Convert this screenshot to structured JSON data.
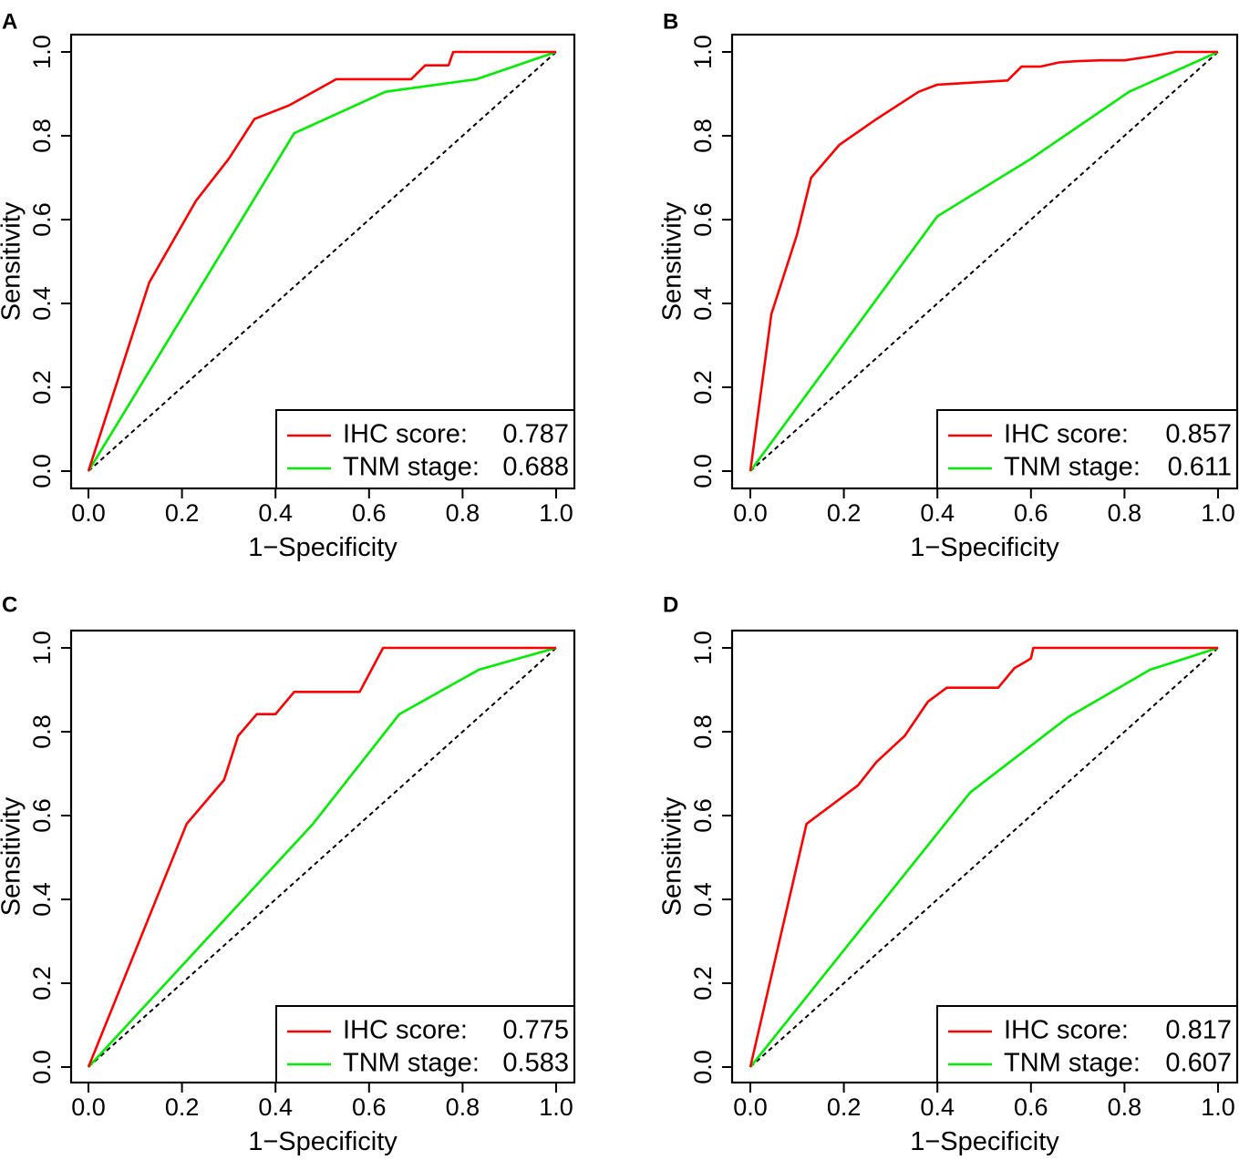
{
  "figure": {
    "description_domain": "ROC curves"
  },
  "colors": {
    "ihc": "#ff0000",
    "tnm": "#00ee00",
    "diagonal": "#000000",
    "axis": "#000000"
  },
  "chart_data": [
    {
      "type": "line",
      "panel_label": "A",
      "xlabel": "1−Specificity",
      "ylabel": "Sensitivity",
      "xlim": [
        0,
        1
      ],
      "ylim": [
        0,
        1
      ],
      "xticks": [
        "0.0",
        "0.2",
        "0.4",
        "0.6",
        "0.8",
        "1.0"
      ],
      "yticks": [
        "0.0",
        "0.2",
        "0.4",
        "0.6",
        "0.8",
        "1.0"
      ],
      "grid": false,
      "legend_position": "bottom-right",
      "reference_line": {
        "x": [
          0,
          1
        ],
        "y": [
          0,
          1
        ],
        "style": "dashed"
      },
      "series": [
        {
          "name": "IHC score:",
          "auc": "0.787",
          "color": "#ff0000",
          "x": [
            0,
            0.13,
            0.23,
            0.3,
            0.355,
            0.43,
            0.53,
            0.69,
            0.72,
            0.75,
            0.77,
            0.78,
            1.0
          ],
          "y": [
            0,
            0.45,
            0.645,
            0.745,
            0.84,
            0.873,
            0.935,
            0.935,
            0.968,
            0.968,
            0.968,
            1.0,
            1.0
          ]
        },
        {
          "name": "TNM stage:",
          "auc": "0.688",
          "color": "#00ee00",
          "x": [
            0,
            0.44,
            0.635,
            0.83,
            1.0
          ],
          "y": [
            0,
            0.806,
            0.905,
            0.935,
            1.0
          ]
        }
      ]
    },
    {
      "type": "line",
      "panel_label": "B",
      "xlabel": "1−Specificity",
      "ylabel": "Sensitivity",
      "xlim": [
        0,
        1
      ],
      "ylim": [
        0,
        1
      ],
      "xticks": [
        "0.0",
        "0.2",
        "0.4",
        "0.6",
        "0.8",
        "1.0"
      ],
      "yticks": [
        "0.0",
        "0.2",
        "0.4",
        "0.6",
        "0.8",
        "1.0"
      ],
      "grid": false,
      "legend_position": "bottom-right",
      "reference_line": {
        "x": [
          0,
          1
        ],
        "y": [
          0,
          1
        ],
        "style": "dashed"
      },
      "series": [
        {
          "name": "IHC score:",
          "auc": "0.857",
          "color": "#ff0000",
          "x": [
            0,
            0.045,
            0.1,
            0.13,
            0.19,
            0.27,
            0.36,
            0.4,
            0.55,
            0.58,
            0.62,
            0.66,
            0.7,
            0.75,
            0.8,
            0.86,
            0.91,
            1.0
          ],
          "y": [
            0,
            0.375,
            0.565,
            0.7,
            0.778,
            0.84,
            0.905,
            0.922,
            0.932,
            0.965,
            0.965,
            0.975,
            0.978,
            0.98,
            0.98,
            0.99,
            1.0,
            1.0
          ]
        },
        {
          "name": "TNM stage:",
          "auc": "0.611",
          "color": "#00ee00",
          "x": [
            0,
            0.4,
            0.6,
            0.81,
            1.0
          ],
          "y": [
            0,
            0.608,
            0.745,
            0.905,
            1.0
          ]
        }
      ]
    },
    {
      "type": "line",
      "panel_label": "C",
      "xlabel": "1−Specificity",
      "ylabel": "Sensitivity",
      "xlim": [
        0,
        1
      ],
      "ylim": [
        0,
        1
      ],
      "xticks": [
        "0.0",
        "0.2",
        "0.4",
        "0.6",
        "0.8",
        "1.0"
      ],
      "yticks": [
        "0.0",
        "0.2",
        "0.4",
        "0.6",
        "0.8",
        "1.0"
      ],
      "grid": false,
      "legend_position": "bottom-right",
      "reference_line": {
        "x": [
          0,
          1
        ],
        "y": [
          0,
          1
        ],
        "style": "dashed"
      },
      "series": [
        {
          "name": "IHC score:",
          "auc": "0.775",
          "color": "#ff0000",
          "x": [
            0,
            0.21,
            0.29,
            0.32,
            0.36,
            0.4,
            0.44,
            0.58,
            0.63,
            1.0
          ],
          "y": [
            0,
            0.58,
            0.685,
            0.79,
            0.842,
            0.842,
            0.895,
            0.895,
            1.0,
            1.0
          ]
        },
        {
          "name": "TNM stage:",
          "auc": "0.583",
          "color": "#00ee00",
          "x": [
            0,
            0.48,
            0.665,
            0.835,
            1.0
          ],
          "y": [
            0,
            0.58,
            0.842,
            0.948,
            1.0
          ]
        }
      ]
    },
    {
      "type": "line",
      "panel_label": "D",
      "xlabel": "1−Specificity",
      "ylabel": "Sensitivity",
      "xlim": [
        0,
        1
      ],
      "ylim": [
        0,
        1
      ],
      "xticks": [
        "0.0",
        "0.2",
        "0.4",
        "0.6",
        "0.8",
        "1.0"
      ],
      "yticks": [
        "0.0",
        "0.2",
        "0.4",
        "0.6",
        "0.8",
        "1.0"
      ],
      "grid": false,
      "legend_position": "bottom-right",
      "reference_line": {
        "x": [
          0,
          1
        ],
        "y": [
          0,
          1
        ],
        "style": "dashed"
      },
      "series": [
        {
          "name": "IHC score:",
          "auc": "0.817",
          "color": "#ff0000",
          "x": [
            0,
            0.12,
            0.23,
            0.27,
            0.33,
            0.38,
            0.42,
            0.53,
            0.565,
            0.59,
            0.6,
            0.605,
            1.0
          ],
          "y": [
            0,
            0.58,
            0.672,
            0.728,
            0.79,
            0.872,
            0.905,
            0.905,
            0.952,
            0.968,
            0.975,
            1.0,
            1.0
          ]
        },
        {
          "name": "TNM stage:",
          "auc": "0.607",
          "color": "#00ee00",
          "x": [
            0,
            0.47,
            0.68,
            0.855,
            1.0
          ],
          "y": [
            0,
            0.655,
            0.835,
            0.948,
            1.0
          ]
        }
      ]
    }
  ]
}
